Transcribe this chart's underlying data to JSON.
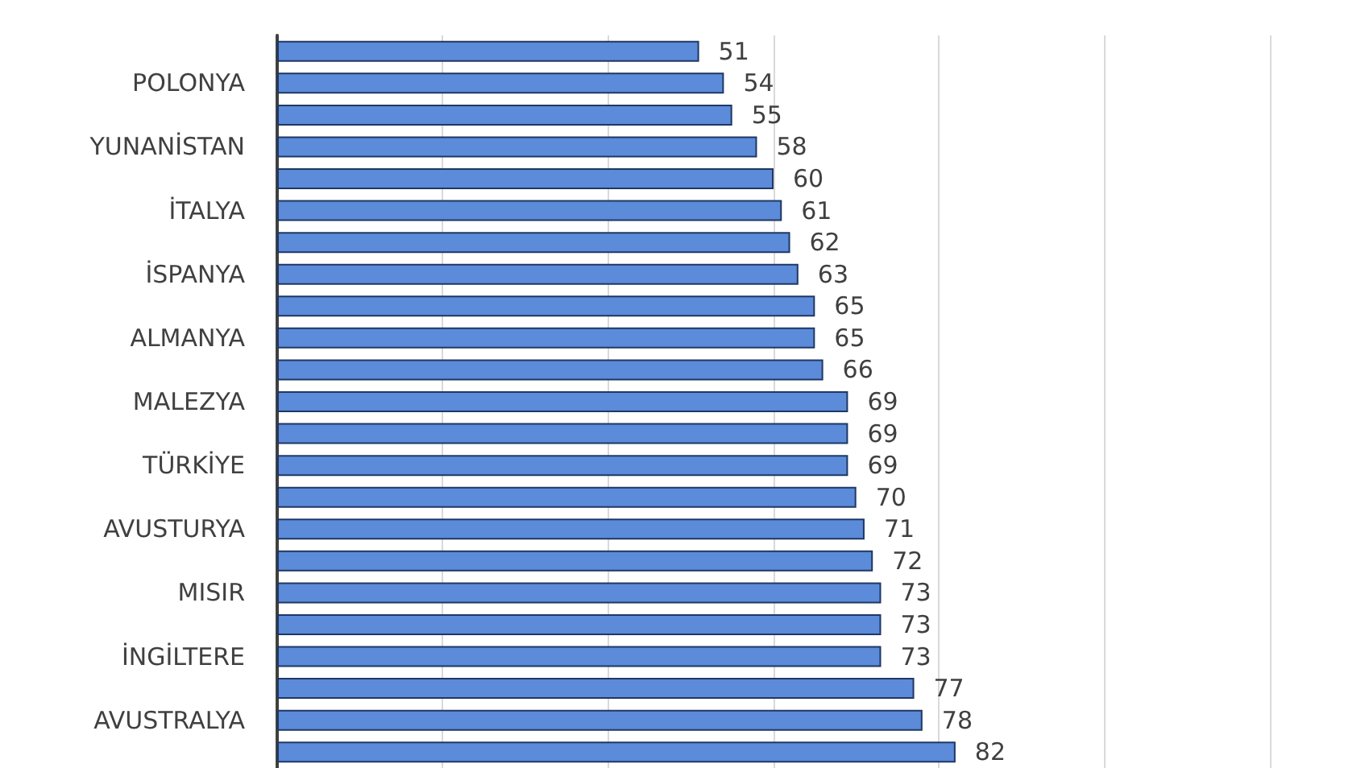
{
  "chart_data": {
    "type": "bar",
    "orientation": "horizontal",
    "categories": [
      null,
      "POLONYA",
      null,
      "YUNANİSTAN",
      null,
      "İTALYA",
      null,
      "İSPANYA",
      null,
      "ALMANYA",
      null,
      "MALEZYA",
      null,
      "TÜRKİYE",
      null,
      "AVUSTURYA",
      null,
      "MISIR",
      null,
      "İNGİLTERE",
      null,
      "AVUSTRALYA",
      null
    ],
    "values": [
      51,
      54,
      55,
      58,
      60,
      61,
      62,
      63,
      65,
      65,
      66,
      69,
      69,
      69,
      70,
      71,
      72,
      73,
      73,
      73,
      77,
      78,
      82
    ],
    "color": "#5b8bd9",
    "data_labels": true,
    "grid": "x",
    "tick_labels": "y",
    "xlim": [
      0,
      120
    ],
    "xticks": [
      {
        "value": 0,
        "label": null
      },
      {
        "value": 20,
        "label": null
      },
      {
        "value": 40,
        "label": null
      },
      {
        "value": 60,
        "label": null
      },
      {
        "value": 80,
        "label": null
      },
      {
        "value": 100,
        "label": null
      },
      {
        "value": 120,
        "label": null
      }
    ]
  }
}
